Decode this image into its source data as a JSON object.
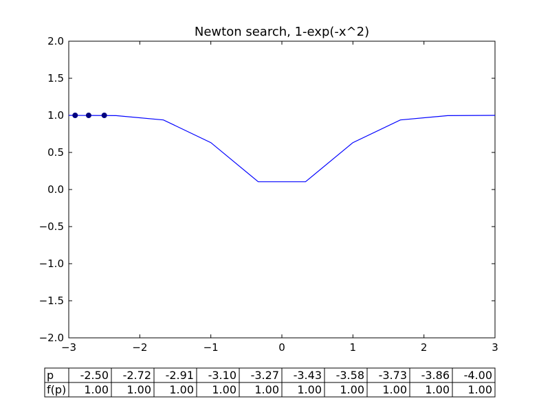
{
  "chart_data": {
    "type": "line",
    "title": "Newton search, 1-exp(-x^2)",
    "xlabel": "",
    "ylabel": "",
    "xlim": [
      -3,
      3
    ],
    "ylim": [
      -2.0,
      2.0
    ],
    "x_ticks": [
      -3,
      -2,
      -1,
      0,
      1,
      2,
      3
    ],
    "x_tick_labels": [
      "−3",
      "−2",
      "−1",
      "0",
      "1",
      "2",
      "3"
    ],
    "y_ticks": [
      -2.0,
      -1.5,
      -1.0,
      -0.5,
      0.0,
      0.5,
      1.0,
      1.5,
      2.0
    ],
    "y_tick_labels": [
      "−2.0",
      "−1.5",
      "−1.0",
      "−0.5",
      "0.0",
      "0.5",
      "1.0",
      "1.5",
      "2.0"
    ],
    "grid": false,
    "series": [
      {
        "x": [
          -3.0,
          -2.333,
          -1.667,
          -1.0,
          -0.333,
          0.333,
          1.0,
          1.667,
          2.333,
          3.0
        ],
        "y": [
          1.0,
          0.996,
          0.938,
          0.632,
          0.105,
          0.105,
          0.632,
          0.938,
          0.996,
          1.0
        ],
        "color": "#0000ff"
      }
    ],
    "points": {
      "x": [
        -2.5,
        -2.72,
        -2.91
      ],
      "y": [
        1.0,
        1.0,
        1.0
      ],
      "color": "#000080"
    },
    "table": {
      "rows": [
        {
          "label": "p",
          "values": [
            "-2.50",
            "-2.72",
            "-2.91",
            "-3.10",
            "-3.27",
            "-3.43",
            "-3.58",
            "-3.73",
            "-3.86",
            "-4.00"
          ]
        },
        {
          "label": "f(p)",
          "values": [
            "1.00",
            "1.00",
            "1.00",
            "1.00",
            "1.00",
            "1.00",
            "1.00",
            "1.00",
            "1.00",
            "1.00"
          ]
        }
      ]
    }
  }
}
